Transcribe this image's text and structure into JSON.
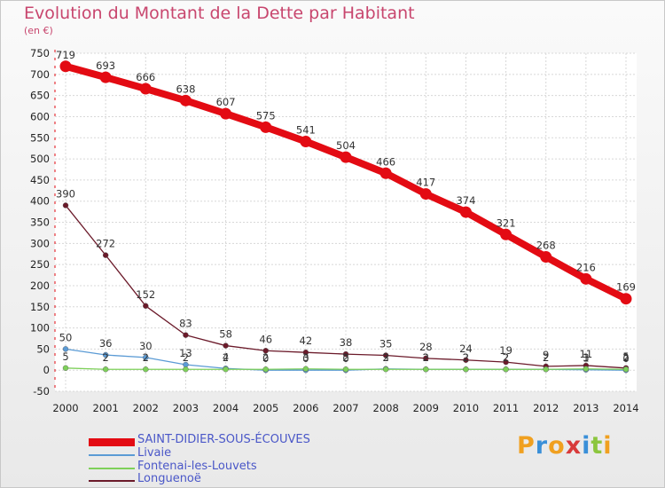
{
  "title": "Evolution du Montant de la Dette par Habitant",
  "unit_label": "(en €)",
  "brand": {
    "letters": [
      "P",
      "r",
      "o",
      "x",
      "i",
      "t",
      "i"
    ],
    "colors": [
      "#f0a020",
      "#3a8fd8",
      "#f0a020",
      "#d83a3a",
      "#3a8fd8",
      "#8cc63e",
      "#f0a020"
    ]
  },
  "chart_data": {
    "type": "line",
    "x": [
      "2000",
      "2001",
      "2002",
      "2003",
      "2004",
      "2005",
      "2006",
      "2007",
      "2008",
      "2009",
      "2010",
      "2011",
      "2012",
      "2013",
      "2014"
    ],
    "ylim": [
      -50,
      750
    ],
    "yticks": [
      -50,
      0,
      50,
      100,
      150,
      200,
      250,
      300,
      350,
      400,
      450,
      500,
      550,
      600,
      650,
      700,
      750
    ],
    "grid": true,
    "series": [
      {
        "name": "SAINT-DIDIER-SOUS-ÉCOUVES",
        "color": "#e30b13",
        "values": [
          719,
          693,
          666,
          638,
          607,
          575,
          541,
          504,
          466,
          417,
          374,
          321,
          268,
          216,
          169
        ],
        "labels": [
          "719",
          "693",
          "666",
          "638",
          "607",
          "575",
          "541",
          "504",
          "466",
          "417",
          "374",
          "321",
          "268",
          "216",
          "169"
        ]
      },
      {
        "name": "Livaie",
        "color": "#5b9bd5",
        "values": [
          50,
          36,
          30,
          13,
          4,
          0,
          0,
          0,
          3,
          2,
          2,
          2,
          2,
          1,
          0
        ],
        "labels": [
          "50",
          "36",
          "30",
          "13",
          "4",
          "0",
          "0",
          "0",
          "3",
          "2",
          "2",
          "2",
          "2",
          "1",
          "0"
        ]
      },
      {
        "name": "Fontenai-les-Louvets",
        "color": "#7ed05a",
        "values": [
          5,
          2,
          2,
          2,
          2,
          2,
          3,
          2,
          2,
          2,
          2,
          2,
          2,
          3,
          2
        ],
        "labels": [
          "5",
          "2",
          "2",
          "2",
          "2",
          "2",
          "3",
          "2",
          "2",
          "2",
          "2",
          "2",
          "2",
          "3",
          "2"
        ]
      },
      {
        "name": "Longuenoë",
        "color": "#6b1a2a",
        "values": [
          390,
          272,
          152,
          83,
          58,
          46,
          42,
          38,
          35,
          28,
          24,
          19,
          9,
          11,
          5
        ],
        "labels": [
          "390",
          "272",
          "152",
          "83",
          "58",
          "46",
          "42",
          "38",
          "35",
          "28",
          "24",
          "19",
          "9",
          "11",
          "5"
        ]
      }
    ],
    "legend": "bottom-left"
  }
}
